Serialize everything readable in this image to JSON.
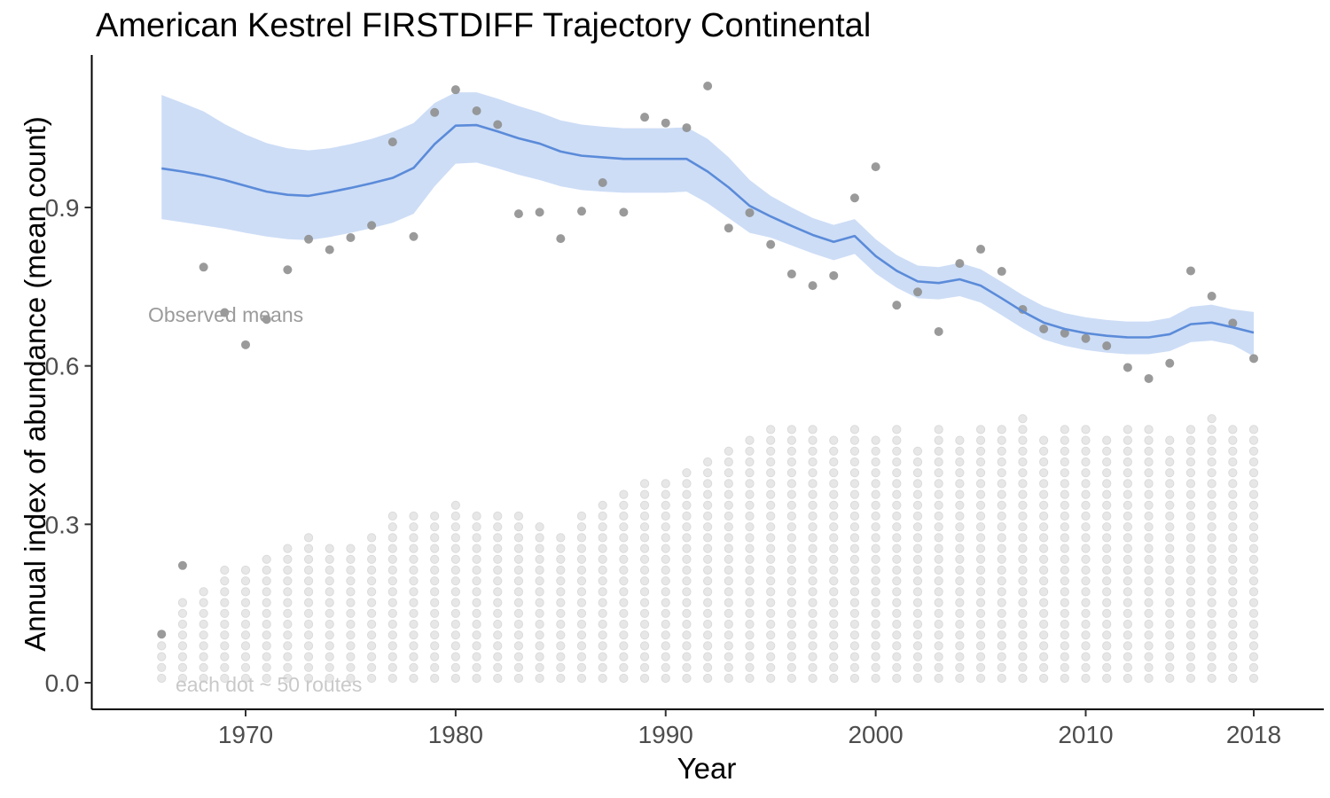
{
  "header": {
    "title": "American Kestrel FIRSTDIFF Trajectory Continental"
  },
  "annotations": {
    "observed_means": "Observed means",
    "route_dots": "each dot ~ 50 routes"
  },
  "colors": {
    "trend_line": "#5b8bd9",
    "ci_ribbon": "#cdddf6",
    "observed_point": "#8f8f8f",
    "route_dot_fill": "#e7e7e7",
    "route_dot_stroke": "#dbdbdb",
    "axis_line": "#000000",
    "tick_text": "#4d4d4d",
    "title_text": "#000000",
    "annotation_observed": "#9b9b9b",
    "annotation_routes": "#c9c9c9"
  },
  "chart_data": {
    "type": "line",
    "title": "American Kestrel FIRSTDIFF Trajectory Continental",
    "xlabel": "Year",
    "ylabel": "Annual index of abundance (mean count)",
    "xlim": [
      1962.7,
      2021.3
    ],
    "ylim": [
      -0.05,
      1.19
    ],
    "grid": false,
    "legend_position": "none",
    "x_ticks": [
      {
        "label": "1970",
        "year": 1970
      },
      {
        "label": "1980",
        "year": 1980
      },
      {
        "label": "1990",
        "year": 1990
      },
      {
        "label": "2000",
        "year": 2000
      },
      {
        "label": "2010",
        "year": 2010
      },
      {
        "label": "2018",
        "year": 2018
      }
    ],
    "y_ticks": [
      {
        "label": "0.0",
        "value": 0.0
      },
      {
        "label": "0.3",
        "value": 0.3
      },
      {
        "label": "0.6",
        "value": 0.6
      },
      {
        "label": "0.9",
        "value": 0.9
      }
    ],
    "routes_per_dot": 50,
    "years": [
      1966,
      1967,
      1968,
      1969,
      1970,
      1971,
      1972,
      1973,
      1974,
      1975,
      1976,
      1977,
      1978,
      1979,
      1980,
      1981,
      1982,
      1983,
      1984,
      1985,
      1986,
      1987,
      1988,
      1989,
      1990,
      1991,
      1992,
      1993,
      1994,
      1995,
      1996,
      1997,
      1998,
      1999,
      2000,
      2001,
      2002,
      2003,
      2004,
      2005,
      2006,
      2007,
      2008,
      2009,
      2010,
      2011,
      2012,
      2013,
      2014,
      2015,
      2016,
      2017,
      2018
    ],
    "series": [
      {
        "name": "observed_mean",
        "values": [
          0.092,
          0.222,
          0.787,
          0.701,
          0.64,
          0.688,
          0.782,
          0.84,
          0.82,
          0.843,
          0.866,
          1.024,
          0.845,
          1.08,
          1.123,
          1.083,
          1.057,
          0.888,
          0.891,
          0.841,
          0.893,
          0.947,
          0.891,
          1.071,
          1.06,
          1.051,
          1.13,
          0.861,
          0.89,
          0.83,
          0.774,
          0.752,
          0.771,
          0.918,
          0.977,
          0.715,
          0.74,
          0.665,
          0.794,
          0.821,
          0.779,
          0.707,
          0.67,
          0.662,
          0.652,
          0.638,
          0.597,
          0.576,
          0.605,
          0.78,
          0.732,
          0.681,
          0.614
        ]
      },
      {
        "name": "predicted_index",
        "values": [
          0.974,
          0.968,
          0.961,
          0.952,
          0.941,
          0.93,
          0.924,
          0.922,
          0.929,
          0.937,
          0.946,
          0.956,
          0.975,
          1.02,
          1.055,
          1.056,
          1.044,
          1.031,
          1.021,
          1.006,
          0.998,
          0.995,
          0.992,
          0.992,
          0.992,
          0.992,
          0.968,
          0.938,
          0.903,
          0.883,
          0.865,
          0.848,
          0.835,
          0.846,
          0.808,
          0.78,
          0.76,
          0.757,
          0.764,
          0.752,
          0.728,
          0.703,
          0.682,
          0.67,
          0.662,
          0.657,
          0.654,
          0.654,
          0.66,
          0.679,
          0.682,
          0.673,
          0.663
        ]
      },
      {
        "name": "ci_upper",
        "values": [
          1.113,
          1.098,
          1.082,
          1.058,
          1.038,
          1.022,
          1.012,
          1.008,
          1.012,
          1.02,
          1.03,
          1.043,
          1.06,
          1.098,
          1.118,
          1.118,
          1.106,
          1.092,
          1.08,
          1.065,
          1.057,
          1.053,
          1.05,
          1.05,
          1.05,
          1.052,
          1.03,
          0.995,
          0.952,
          0.922,
          0.9,
          0.88,
          0.867,
          0.878,
          0.84,
          0.81,
          0.79,
          0.787,
          0.795,
          0.783,
          0.759,
          0.734,
          0.713,
          0.7,
          0.692,
          0.687,
          0.684,
          0.684,
          0.691,
          0.712,
          0.716,
          0.707,
          0.702
        ]
      },
      {
        "name": "ci_lower",
        "values": [
          0.878,
          0.872,
          0.866,
          0.86,
          0.852,
          0.845,
          0.84,
          0.838,
          0.844,
          0.852,
          0.861,
          0.871,
          0.888,
          0.94,
          0.983,
          0.985,
          0.974,
          0.962,
          0.952,
          0.94,
          0.933,
          0.93,
          0.928,
          0.928,
          0.928,
          0.93,
          0.908,
          0.88,
          0.852,
          0.843,
          0.828,
          0.813,
          0.8,
          0.812,
          0.775,
          0.748,
          0.728,
          0.726,
          0.732,
          0.72,
          0.696,
          0.671,
          0.65,
          0.638,
          0.63,
          0.625,
          0.622,
          0.622,
          0.628,
          0.645,
          0.648,
          0.64,
          0.618
        ]
      },
      {
        "name": "routes",
        "values": [
          200,
          400,
          450,
          550,
          550,
          600,
          650,
          700,
          650,
          650,
          700,
          800,
          800,
          800,
          850,
          800,
          800,
          800,
          750,
          700,
          800,
          850,
          900,
          950,
          950,
          1000,
          1050,
          1100,
          1150,
          1200,
          1200,
          1200,
          1150,
          1200,
          1150,
          1200,
          1100,
          1200,
          1150,
          1200,
          1200,
          1250,
          1150,
          1200,
          1200,
          1150,
          1200,
          1200,
          1150,
          1200,
          1250,
          1200,
          1200
        ]
      }
    ]
  }
}
